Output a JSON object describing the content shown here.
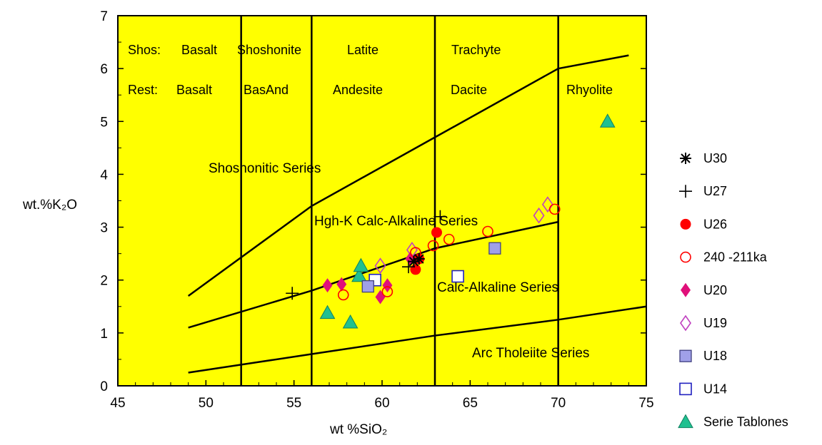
{
  "chart_data": {
    "type": "scatter",
    "title": "",
    "xlabel": "wt %SiO₂",
    "ylabel": "wt.%K₂O",
    "xlim": [
      45,
      75
    ],
    "ylim": [
      0,
      7
    ],
    "x_ticks": [
      "45",
      "50",
      "55",
      "60",
      "65",
      "70",
      "75"
    ],
    "y_ticks": [
      "0",
      "1",
      "2",
      "3",
      "4",
      "5",
      "6",
      "7"
    ],
    "background_color": "#ffff00",
    "grid": false,
    "legend_position": "right",
    "vertical_lines": [
      52,
      56,
      63,
      70
    ],
    "boundary_lines": [
      {
        "name": "upper",
        "points": [
          [
            49,
            1.7
          ],
          [
            56,
            3.4
          ],
          [
            63,
            4.7
          ],
          [
            70,
            6.0
          ],
          [
            74,
            6.25
          ]
        ]
      },
      {
        "name": "middle",
        "points": [
          [
            49,
            1.1
          ],
          [
            56,
            1.8
          ],
          [
            63,
            2.6
          ],
          [
            70,
            3.1
          ]
        ]
      },
      {
        "name": "lower",
        "points": [
          [
            49,
            0.25
          ],
          [
            56,
            0.6
          ],
          [
            63,
            0.95
          ],
          [
            70,
            1.25
          ],
          [
            75,
            1.5
          ]
        ]
      }
    ],
    "field_labels": {
      "row1_prefix": "Shos:",
      "row1": [
        "Basalt",
        "Shoshonite",
        "Latite",
        "Trachyte"
      ],
      "row2_prefix": "Rest:",
      "row2": [
        "Basalt",
        "BasAnd",
        "Andesite",
        "Dacite",
        "Rhyolite"
      ]
    },
    "series_labels": [
      "Shoshonitic Series",
      "Hgh-K Calc-Alkaline Series",
      "Calc-Alkaline Series",
      "Arc Tholeiite Series"
    ],
    "series": [
      {
        "name": "U30",
        "marker": "asterisk",
        "color": "#000000",
        "points": [
          [
            62.1,
            2.4
          ],
          [
            61.8,
            2.35
          ]
        ]
      },
      {
        "name": "U27",
        "marker": "plus",
        "color": "#000000",
        "points": [
          [
            54.9,
            1.75
          ],
          [
            61.5,
            2.25
          ],
          [
            63.3,
            3.2
          ]
        ]
      },
      {
        "name": "U26",
        "marker": "filled-circle",
        "color": "#ff0000",
        "points": [
          [
            61.9,
            2.2
          ],
          [
            62.1,
            2.4
          ],
          [
            63.1,
            2.9
          ]
        ]
      },
      {
        "name": "240 -211ka",
        "marker": "open-circle",
        "color": "#ff0000",
        "points": [
          [
            57.8,
            1.72
          ],
          [
            60.3,
            1.78
          ],
          [
            61.9,
            2.52
          ],
          [
            62.9,
            2.65
          ],
          [
            63.8,
            2.77
          ],
          [
            66.0,
            2.92
          ],
          [
            69.8,
            3.34
          ]
        ]
      },
      {
        "name": "U20",
        "marker": "filled-diamond",
        "color": "#e0107a",
        "points": [
          [
            56.9,
            1.9
          ],
          [
            57.7,
            1.92
          ],
          [
            59.9,
            1.68
          ],
          [
            60.3,
            1.9
          ],
          [
            61.6,
            2.4
          ]
        ]
      },
      {
        "name": "U19",
        "marker": "open-diamond",
        "color": "#c040c0",
        "points": [
          [
            59.9,
            2.27
          ],
          [
            61.7,
            2.57
          ],
          [
            68.9,
            3.22
          ],
          [
            69.4,
            3.43
          ]
        ]
      },
      {
        "name": "U18",
        "marker": "filled-square",
        "color": "#a0a0e8",
        "points": [
          [
            59.2,
            1.88
          ],
          [
            66.4,
            2.6
          ]
        ]
      },
      {
        "name": "U14",
        "marker": "open-square",
        "color": "#2020c0",
        "points": [
          [
            59.6,
            2.0
          ],
          [
            64.3,
            2.07
          ]
        ]
      },
      {
        "name": "Serie Tablones",
        "marker": "filled-triangle",
        "color": "#20c090",
        "points": [
          [
            56.9,
            1.38
          ],
          [
            58.2,
            1.2
          ],
          [
            58.7,
            2.08
          ],
          [
            58.8,
            2.27
          ],
          [
            72.8,
            5.0
          ]
        ]
      }
    ]
  }
}
